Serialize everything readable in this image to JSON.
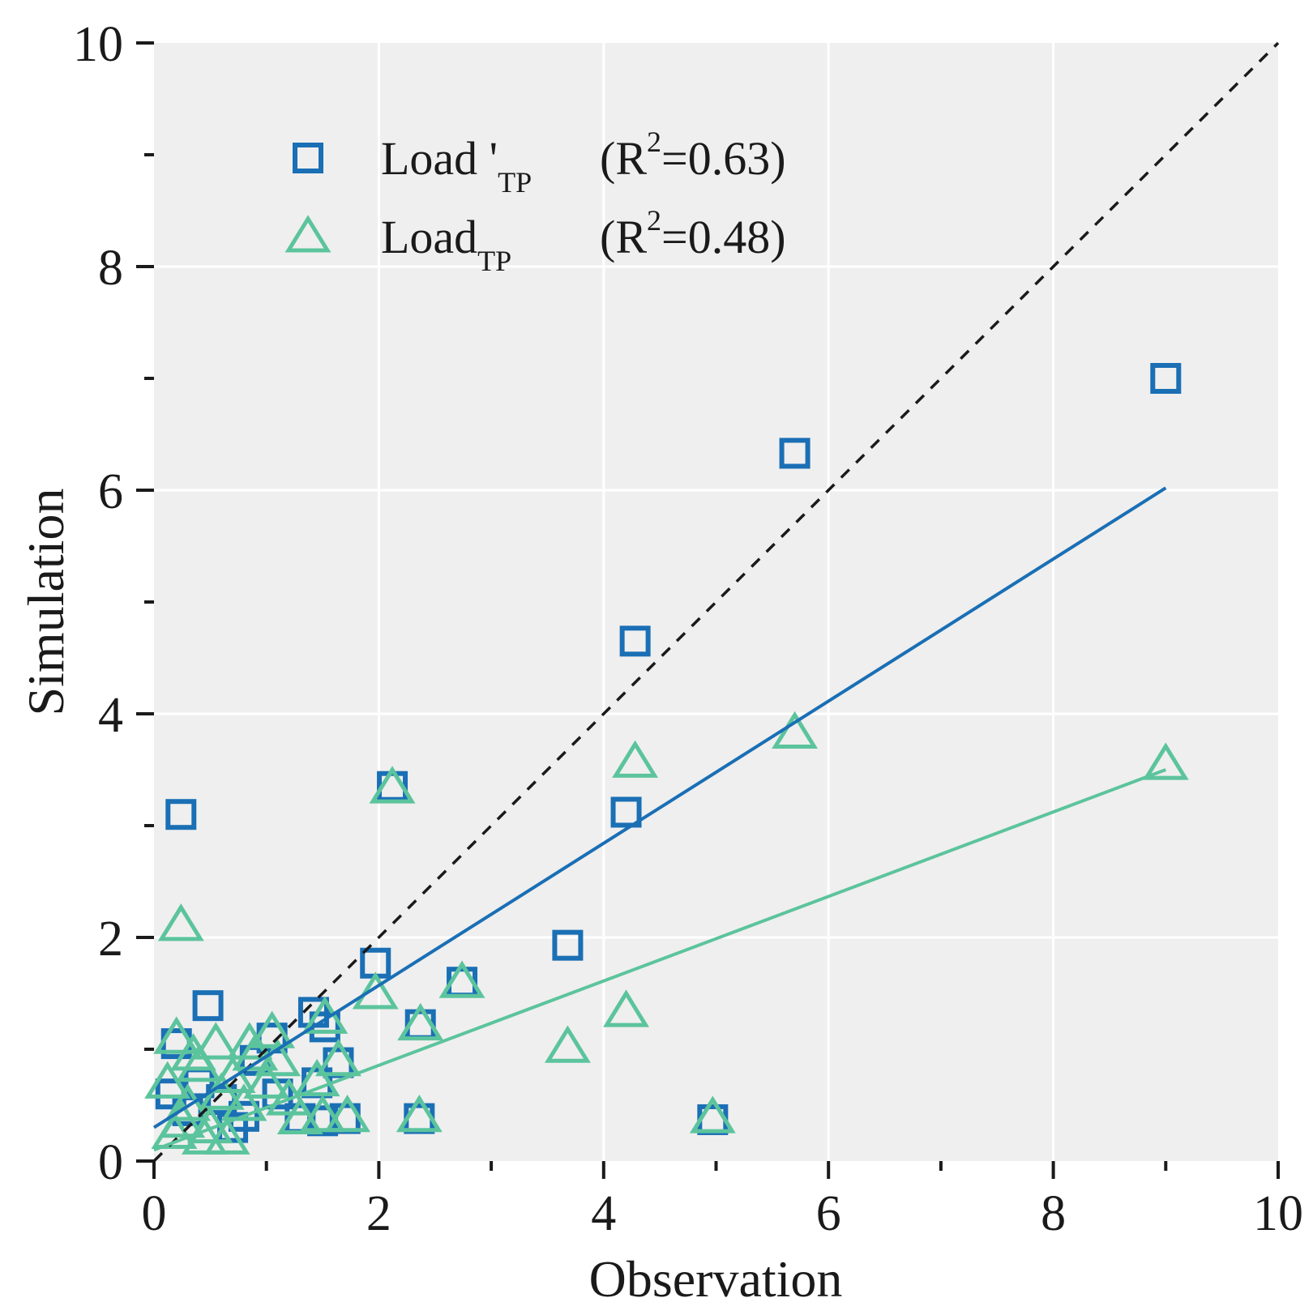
{
  "chart_data": {
    "type": "scatter",
    "title": "",
    "xlabel": "Observation",
    "ylabel": "Simulation",
    "xlim": [
      0,
      10
    ],
    "ylim": [
      0,
      10
    ],
    "x_ticks": [
      0,
      2,
      4,
      6,
      8,
      10
    ],
    "y_ticks": [
      0,
      2,
      4,
      6,
      8,
      10
    ],
    "x_tick_labels": [
      "0",
      "2",
      "4",
      "6",
      "8",
      "10"
    ],
    "y_tick_labels": [
      "0",
      "2",
      "4",
      "6",
      "8",
      "10"
    ],
    "x_minor_ticks": [
      1,
      3,
      5,
      7,
      9
    ],
    "y_minor_ticks": [
      1,
      3,
      5,
      7,
      9
    ],
    "grid": true,
    "legend_position": "top-left",
    "colors": {
      "load_prime": "#1a6fb5",
      "load": "#5cc49d",
      "identity": "#1a1a1a",
      "panel": "#efefef",
      "grid": "#ffffff"
    },
    "identity_line": {
      "x": [
        0,
        10
      ],
      "y": [
        0,
        10
      ],
      "style": "dashed"
    },
    "series": [
      {
        "name": "Load '",
        "subscript": "TP",
        "r2_text_prefix": "(R",
        "r2_sup": "2",
        "r2_text_suffix": "=0.63)",
        "marker": "square",
        "color": "#1a6fb5",
        "fit": {
          "x": [
            0,
            9.0
          ],
          "y": [
            0.3,
            6.02
          ]
        },
        "points": [
          [
            9.0,
            7.0
          ],
          [
            5.7,
            6.33
          ],
          [
            4.28,
            4.65
          ],
          [
            4.2,
            3.12
          ],
          [
            3.68,
            1.93
          ],
          [
            2.12,
            3.35
          ],
          [
            1.97,
            1.77
          ],
          [
            2.74,
            1.6
          ],
          [
            2.37,
            1.22
          ],
          [
            2.36,
            0.38
          ],
          [
            4.97,
            0.37
          ],
          [
            0.24,
            3.1
          ],
          [
            0.48,
            1.39
          ],
          [
            1.42,
            1.33
          ],
          [
            1.52,
            1.2
          ],
          [
            1.64,
            0.88
          ],
          [
            1.45,
            0.7
          ],
          [
            1.7,
            0.38
          ],
          [
            1.5,
            0.36
          ],
          [
            1.3,
            0.38
          ],
          [
            1.05,
            1.1
          ],
          [
            0.9,
            0.9
          ],
          [
            0.6,
            0.55
          ],
          [
            0.4,
            0.7
          ],
          [
            0.3,
            0.45
          ],
          [
            0.15,
            0.6
          ],
          [
            0.7,
            0.3
          ],
          [
            0.2,
            1.05
          ],
          [
            1.1,
            0.6
          ],
          [
            0.8,
            0.4
          ]
        ]
      },
      {
        "name": "Load",
        "subscript": "TP",
        "r2_text_prefix": "(R",
        "r2_sup": "2",
        "r2_text_suffix": "=0.48)",
        "marker": "triangle",
        "color": "#5cc49d",
        "fit": {
          "x": [
            0,
            9.0
          ],
          "y": [
            0.1,
            3.5
          ]
        },
        "points": [
          [
            9.0,
            3.55
          ],
          [
            5.7,
            3.83
          ],
          [
            4.28,
            3.57
          ],
          [
            4.2,
            1.34
          ],
          [
            3.68,
            1.02
          ],
          [
            2.12,
            3.34
          ],
          [
            1.97,
            1.5
          ],
          [
            2.74,
            1.6
          ],
          [
            2.37,
            1.22
          ],
          [
            2.36,
            0.4
          ],
          [
            4.97,
            0.39
          ],
          [
            0.24,
            2.11
          ],
          [
            1.52,
            1.28
          ],
          [
            1.64,
            0.9
          ],
          [
            1.45,
            0.72
          ],
          [
            1.72,
            0.4
          ],
          [
            1.5,
            0.4
          ],
          [
            1.3,
            0.38
          ],
          [
            1.05,
            1.15
          ],
          [
            0.9,
            0.95
          ],
          [
            0.7,
            0.75
          ],
          [
            0.55,
            1.05
          ],
          [
            0.4,
            0.85
          ],
          [
            0.2,
            1.1
          ],
          [
            0.12,
            0.7
          ],
          [
            0.3,
            0.5
          ],
          [
            0.5,
            0.3
          ],
          [
            0.8,
            0.5
          ],
          [
            1.0,
            0.7
          ],
          [
            0.65,
            0.2
          ],
          [
            0.18,
            0.25
          ],
          [
            0.85,
            1.05
          ],
          [
            1.2,
            0.55
          ],
          [
            0.35,
            0.95
          ],
          [
            0.6,
            0.6
          ],
          [
            0.25,
            0.35
          ],
          [
            1.1,
            0.9
          ],
          [
            0.45,
            0.2
          ]
        ]
      }
    ]
  }
}
